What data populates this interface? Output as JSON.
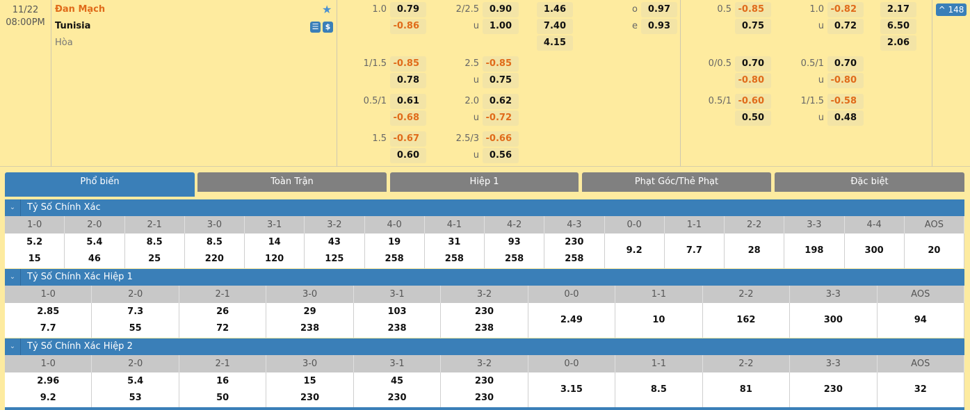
{
  "match": {
    "date": "11/22",
    "time": "08:00PM",
    "home": "Đan Mạch",
    "away": "Tunisia",
    "draw": "Hòa",
    "more_label": "^ 148",
    "icons": [
      "star-icon",
      "stats-icon",
      "dollar-icon"
    ]
  },
  "colors": {
    "accent": "#3a7fb8",
    "negative": "#e06b1a",
    "background": "#feeb9f",
    "tab_inactive": "#808080"
  },
  "full_time": [
    [
      [
        {
          "l": "1.0",
          "v": "0.79"
        },
        {
          "l": "2/2.5",
          "v": "0.90"
        },
        {
          "l": "",
          "v": "1.46"
        },
        {
          "l": "o",
          "v": "0.97"
        }
      ],
      [
        {
          "l": "",
          "v": "-0.86"
        },
        {
          "l": "u",
          "v": "1.00"
        },
        {
          "l": "",
          "v": "7.40"
        },
        {
          "l": "e",
          "v": "0.93"
        }
      ],
      [
        null,
        null,
        {
          "l": "",
          "v": "4.15"
        },
        null
      ]
    ],
    [
      [
        {
          "l": "1/1.5",
          "v": "-0.85"
        },
        {
          "l": "2.5",
          "v": "-0.85"
        },
        null,
        null
      ],
      [
        {
          "l": "",
          "v": "0.78"
        },
        {
          "l": "u",
          "v": "0.75"
        },
        null,
        null
      ]
    ],
    [
      [
        {
          "l": "0.5/1",
          "v": "0.61"
        },
        {
          "l": "2.0",
          "v": "0.62"
        },
        null,
        null
      ],
      [
        {
          "l": "",
          "v": "-0.68"
        },
        {
          "l": "u",
          "v": "-0.72"
        },
        null,
        null
      ]
    ],
    [
      [
        {
          "l": "1.5",
          "v": "-0.67"
        },
        {
          "l": "2.5/3",
          "v": "-0.66"
        },
        null,
        null
      ],
      [
        {
          "l": "",
          "v": "0.60"
        },
        {
          "l": "u",
          "v": "0.56"
        },
        null,
        null
      ]
    ]
  ],
  "first_half": [
    [
      [
        {
          "l": "0.5",
          "v": "-0.85"
        },
        {
          "l": "1.0",
          "v": "-0.82"
        },
        {
          "l": "",
          "v": "2.17"
        }
      ],
      [
        {
          "l": "",
          "v": "0.75"
        },
        {
          "l": "u",
          "v": "0.72"
        },
        {
          "l": "",
          "v": "6.50"
        }
      ],
      [
        null,
        null,
        {
          "l": "",
          "v": "2.06"
        }
      ]
    ],
    [
      [
        {
          "l": "0/0.5",
          "v": "0.70"
        },
        {
          "l": "0.5/1",
          "v": "0.70"
        },
        null
      ],
      [
        {
          "l": "",
          "v": "-0.80"
        },
        {
          "l": "u",
          "v": "-0.80"
        },
        null
      ]
    ],
    [
      [
        {
          "l": "0.5/1",
          "v": "-0.60"
        },
        {
          "l": "1/1.5",
          "v": "-0.58"
        },
        null
      ],
      [
        {
          "l": "",
          "v": "0.50"
        },
        {
          "l": "u",
          "v": "0.48"
        },
        null
      ]
    ]
  ],
  "tabs": [
    {
      "label": "Phổ biến",
      "active": true
    },
    {
      "label": "Toàn Trận"
    },
    {
      "label": "Hiệp 1"
    },
    {
      "label": "Phạt Góc/Thẻ Phạt"
    },
    {
      "label": "Đặc biệt"
    }
  ],
  "sections": [
    {
      "title": "Tỷ Số Chính Xác",
      "columns": [
        {
          "score": "1-0",
          "values": [
            "5.2",
            "15"
          ]
        },
        {
          "score": "2-0",
          "values": [
            "5.4",
            "46"
          ]
        },
        {
          "score": "2-1",
          "values": [
            "8.5",
            "25"
          ]
        },
        {
          "score": "3-0",
          "values": [
            "8.5",
            "220"
          ]
        },
        {
          "score": "3-1",
          "values": [
            "14",
            "120"
          ]
        },
        {
          "score": "3-2",
          "values": [
            "43",
            "125"
          ]
        },
        {
          "score": "4-0",
          "values": [
            "19",
            "258"
          ]
        },
        {
          "score": "4-1",
          "values": [
            "31",
            "258"
          ]
        },
        {
          "score": "4-2",
          "values": [
            "93",
            "258"
          ]
        },
        {
          "score": "4-3",
          "values": [
            "230",
            "258"
          ]
        },
        {
          "score": "0-0",
          "values": [
            "9.2"
          ]
        },
        {
          "score": "1-1",
          "values": [
            "7.7"
          ]
        },
        {
          "score": "2-2",
          "values": [
            "28"
          ]
        },
        {
          "score": "3-3",
          "values": [
            "198"
          ]
        },
        {
          "score": "4-4",
          "values": [
            "300"
          ]
        },
        {
          "score": "AOS",
          "values": [
            "20"
          ]
        }
      ]
    },
    {
      "title": "Tỷ Số Chính Xác Hiệp 1",
      "columns": [
        {
          "score": "1-0",
          "values": [
            "2.85",
            "7.7"
          ]
        },
        {
          "score": "2-0",
          "values": [
            "7.3",
            "55"
          ]
        },
        {
          "score": "2-1",
          "values": [
            "26",
            "72"
          ]
        },
        {
          "score": "3-0",
          "values": [
            "29",
            "238"
          ]
        },
        {
          "score": "3-1",
          "values": [
            "103",
            "238"
          ]
        },
        {
          "score": "3-2",
          "values": [
            "230",
            "238"
          ]
        },
        {
          "score": "0-0",
          "values": [
            "2.49"
          ]
        },
        {
          "score": "1-1",
          "values": [
            "10"
          ]
        },
        {
          "score": "2-2",
          "values": [
            "162"
          ]
        },
        {
          "score": "3-3",
          "values": [
            "300"
          ]
        },
        {
          "score": "AOS",
          "values": [
            "94"
          ]
        }
      ]
    },
    {
      "title": "Tỷ Số Chính Xác Hiệp 2",
      "columns": [
        {
          "score": "1-0",
          "values": [
            "2.96",
            "9.2"
          ]
        },
        {
          "score": "2-0",
          "values": [
            "5.4",
            "53"
          ]
        },
        {
          "score": "2-1",
          "values": [
            "16",
            "50"
          ]
        },
        {
          "score": "3-0",
          "values": [
            "15",
            "230"
          ]
        },
        {
          "score": "3-1",
          "values": [
            "45",
            "230"
          ]
        },
        {
          "score": "3-2",
          "values": [
            "230",
            "230"
          ]
        },
        {
          "score": "0-0",
          "values": [
            "3.15"
          ]
        },
        {
          "score": "1-1",
          "values": [
            "8.5"
          ]
        },
        {
          "score": "2-2",
          "values": [
            "81"
          ]
        },
        {
          "score": "3-3",
          "values": [
            "230"
          ]
        },
        {
          "score": "AOS",
          "values": [
            "32"
          ]
        }
      ]
    }
  ]
}
